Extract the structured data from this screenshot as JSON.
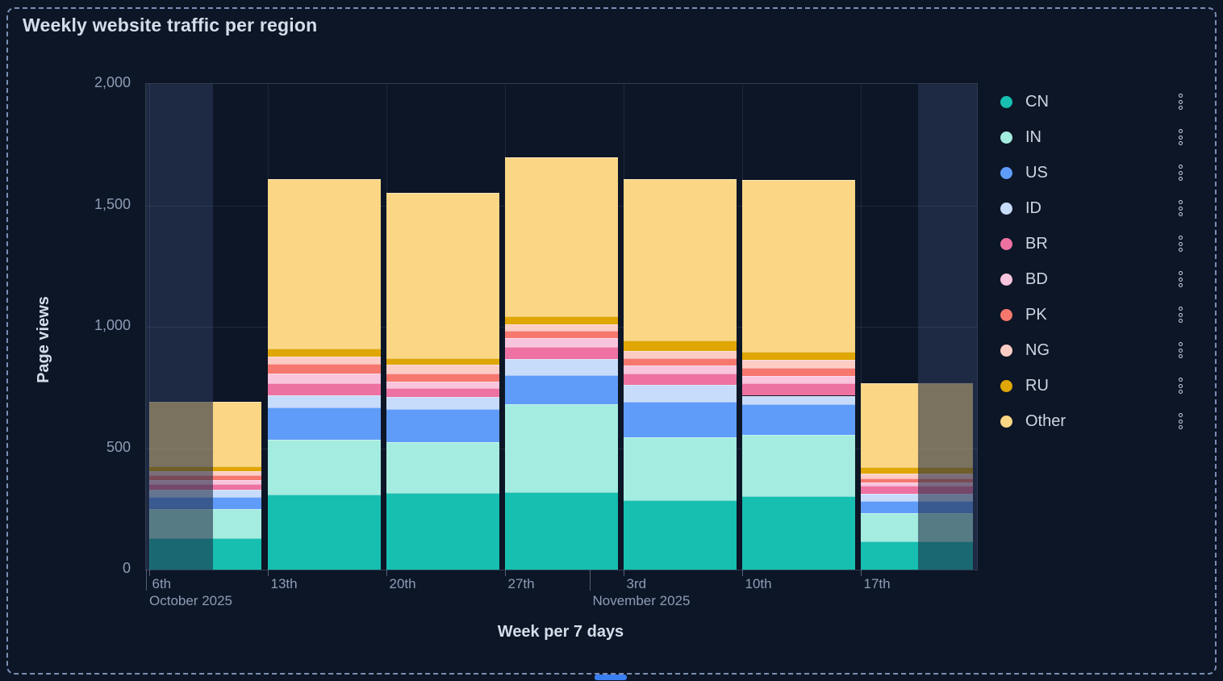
{
  "panel": {
    "title": "Weekly website traffic per region"
  },
  "chart_data": {
    "type": "bar",
    "stacked": true,
    "title": "Weekly website traffic per region",
    "xlabel": "Week per 7 days",
    "ylabel": "Page views",
    "ylim": [
      0,
      2000
    ],
    "grid": true,
    "legend_position": "right",
    "yticks": [
      {
        "value": 0,
        "label": "0"
      },
      {
        "value": 500,
        "label": "500"
      },
      {
        "value": 1000,
        "label": "1,000"
      },
      {
        "value": 1500,
        "label": "1,500"
      },
      {
        "value": 2000,
        "label": "2,000"
      }
    ],
    "categories": [
      {
        "day": "6th",
        "month": "October 2025"
      },
      {
        "day": "13th"
      },
      {
        "day": "20th"
      },
      {
        "day": "27th"
      },
      {
        "day": "3rd",
        "month": "November 2025"
      },
      {
        "day": "10th"
      },
      {
        "day": "17th"
      }
    ],
    "series": [
      {
        "name": "CN",
        "color": "#16bfb0",
        "values": [
          130,
          309,
          315,
          318,
          286,
          302,
          116
        ]
      },
      {
        "name": "IN",
        "color": "#a4ece0",
        "values": [
          118,
          225,
          210,
          363,
          260,
          252,
          116
        ]
      },
      {
        "name": "US",
        "color": "#5f9cfa",
        "values": [
          52,
          135,
          135,
          119,
          146,
          127,
          52
        ]
      },
      {
        "name": "ID",
        "color": "#c7dbfb",
        "values": [
          30,
          48,
          50,
          67,
          69,
          35,
          28
        ]
      },
      {
        "name": "BR",
        "color": "#ed72a2",
        "values": [
          23,
          50,
          36,
          50,
          47,
          51,
          33
        ]
      },
      {
        "name": "BD",
        "color": "#f9c4dd",
        "values": [
          17,
          42,
          29,
          36,
          31,
          30,
          13
        ]
      },
      {
        "name": "PK",
        "color": "#f6776e",
        "values": [
          19,
          37,
          33,
          30,
          32,
          33,
          18
        ]
      },
      {
        "name": "NG",
        "color": "#fcccc5",
        "values": [
          15,
          30,
          35,
          27,
          31,
          33,
          20
        ]
      },
      {
        "name": "RU",
        "color": "#dfa604",
        "values": [
          20,
          34,
          28,
          33,
          41,
          33,
          25
        ]
      },
      {
        "name": "Other",
        "color": "#fad685",
        "values": [
          268,
          698,
          681,
          655,
          665,
          709,
          345
        ]
      }
    ],
    "totals": [
      692,
      1608,
      1552,
      1698,
      1608,
      1605,
      766
    ],
    "unselected_brush": {
      "note": "weeks partially outside selected time range are dimmed",
      "first_bar_dim_until_fraction": 0.57,
      "last_bar_dim_from_fraction": 0.51
    }
  },
  "legend": {
    "menu_icon": "kebab-menu"
  }
}
